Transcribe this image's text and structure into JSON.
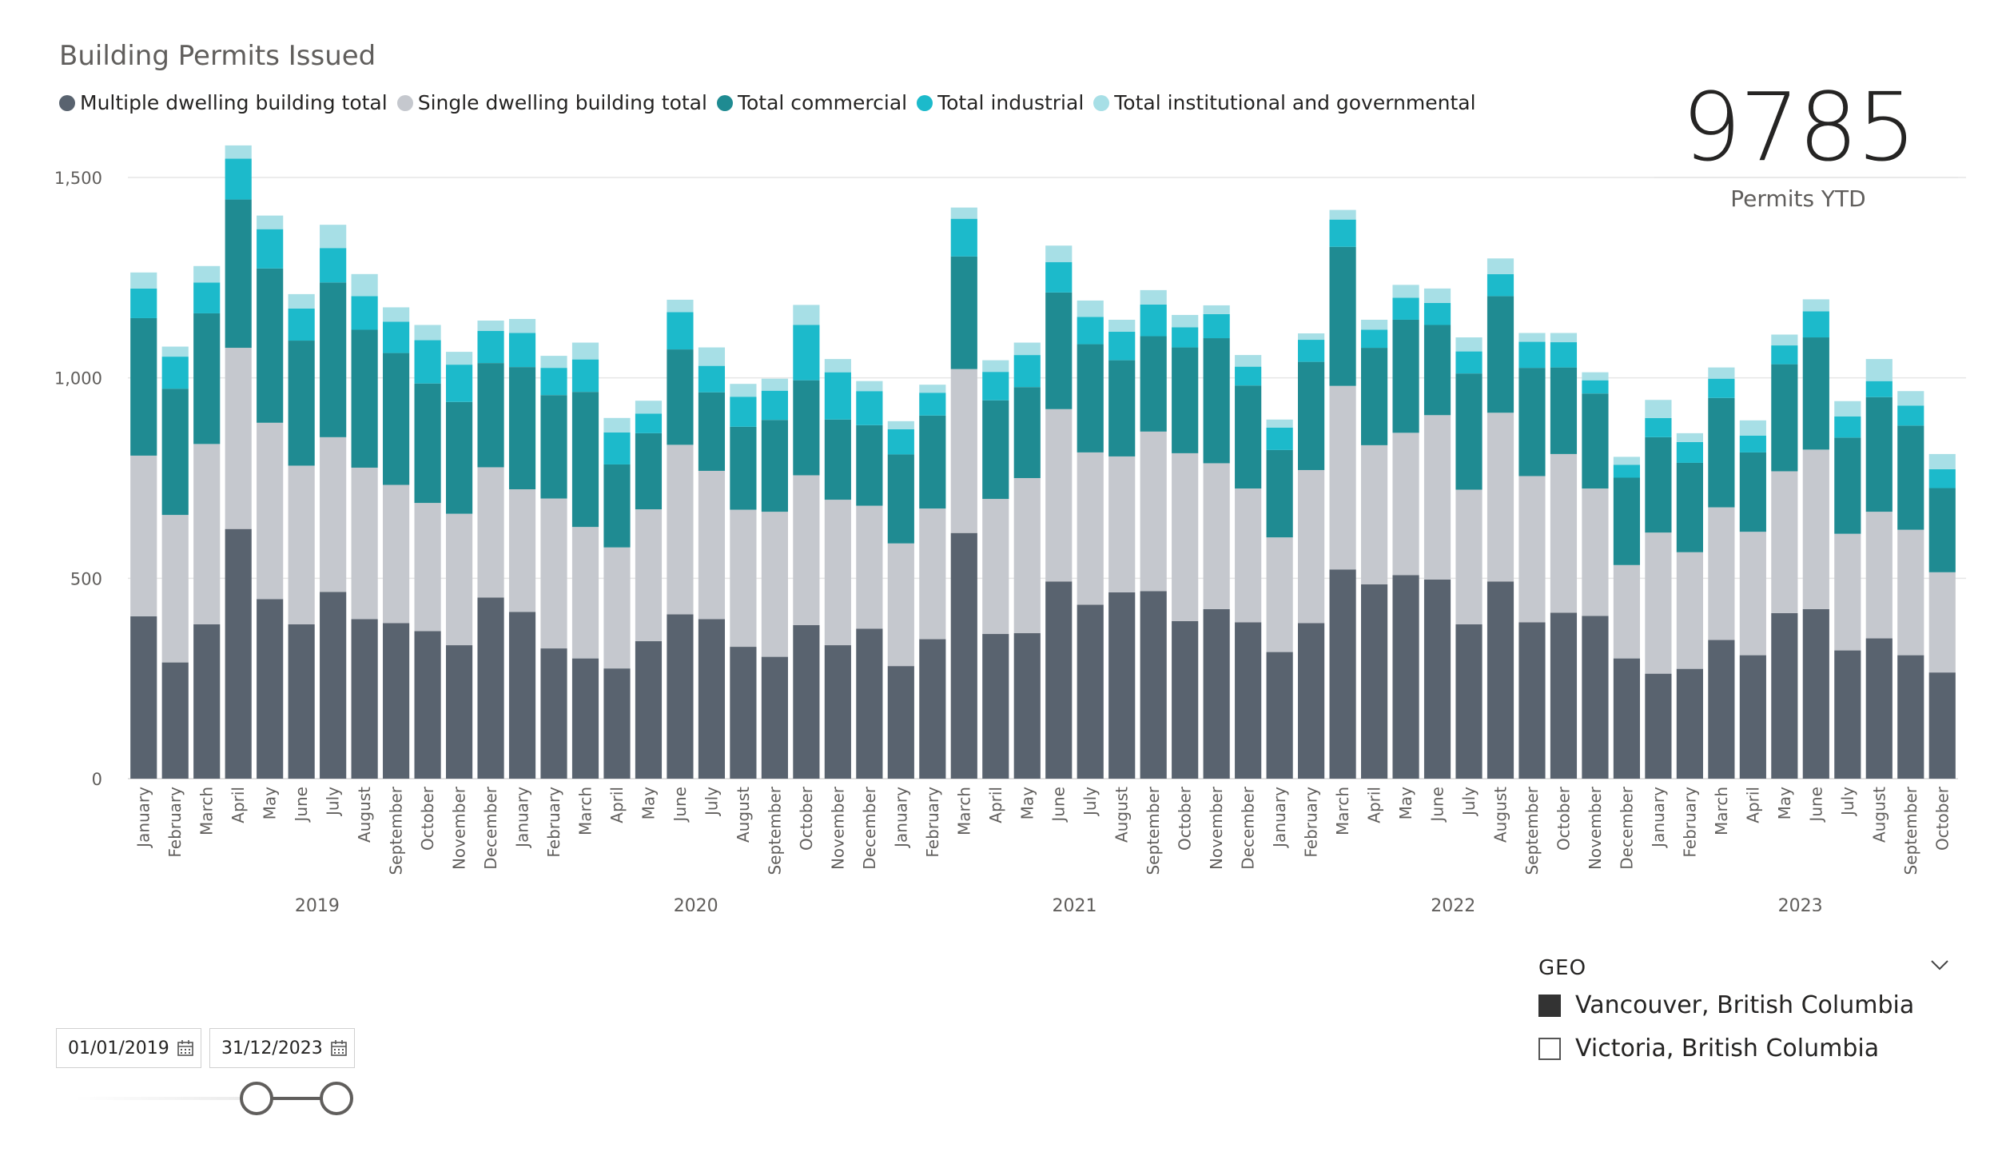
{
  "report": {
    "title": "Building Permits Issued"
  },
  "kpi": {
    "value": "9785",
    "label": "Permits YTD"
  },
  "filters": {
    "start_date": "01/01/2019",
    "end_date": "31/12/2023",
    "slider_range": [
      0.74,
      1.0
    ]
  },
  "geo": {
    "header": "GEO",
    "options": [
      {
        "label": "Vancouver, British Columbia",
        "checked": true
      },
      {
        "label": "Victoria, British Columbia",
        "checked": false
      }
    ]
  },
  "colors": {
    "multiple": "#59636f",
    "single": "#c5c8ce",
    "commercial": "#1f8b92",
    "industrial": "#1cbacb",
    "institutional": "#a7dfe6",
    "gridline": "#e6e6e6",
    "axis_text": "#605e5c"
  },
  "chart_data": {
    "type": "bar",
    "stacked": true,
    "title": "Building Permits Issued",
    "xlabel": "",
    "ylabel": "",
    "ylim": [
      0,
      1580
    ],
    "yticks": [
      0,
      500,
      1000,
      1500
    ],
    "ytick_labels": [
      "0",
      "500",
      "1,000",
      "1,500"
    ],
    "legend": "top-left",
    "grid": true,
    "categories": [
      "January",
      "February",
      "March",
      "April",
      "May",
      "June",
      "July",
      "August",
      "September",
      "October",
      "November",
      "December",
      "January",
      "February",
      "March",
      "April",
      "May",
      "June",
      "July",
      "August",
      "September",
      "October",
      "November",
      "December",
      "January",
      "February",
      "March",
      "April",
      "May",
      "June",
      "July",
      "August",
      "September",
      "October",
      "November",
      "December",
      "January",
      "February",
      "March",
      "April",
      "May",
      "June",
      "July",
      "August",
      "September",
      "October",
      "November",
      "December",
      "January",
      "February",
      "March",
      "April",
      "May",
      "June",
      "July",
      "August",
      "September",
      "October"
    ],
    "years": [
      {
        "label": "2019",
        "start": 0,
        "count": 12
      },
      {
        "label": "2020",
        "start": 12,
        "count": 12
      },
      {
        "label": "2021",
        "start": 24,
        "count": 12
      },
      {
        "label": "2022",
        "start": 36,
        "count": 12
      },
      {
        "label": "2023",
        "start": 48,
        "count": 10
      }
    ],
    "series": [
      {
        "name": "Multiple dwelling building total",
        "key": "multiple",
        "values": [
          405,
          290,
          385,
          623,
          448,
          385,
          466,
          398,
          388,
          368,
          333,
          452,
          416,
          325,
          300,
          275,
          343,
          410,
          398,
          329,
          304,
          383,
          333,
          374,
          281,
          348,
          613,
          361,
          363,
          492,
          434,
          465,
          468,
          393,
          423,
          390,
          316,
          388,
          522,
          485,
          508,
          497,
          385,
          492,
          390,
          414,
          406,
          300,
          262,
          274,
          346,
          308,
          413,
          423,
          320,
          350,
          308,
          265
        ]
      },
      {
        "name": "Single dwelling building total",
        "key": "single",
        "values": [
          401,
          368,
          450,
          452,
          440,
          396,
          386,
          378,
          345,
          320,
          328,
          325,
          306,
          374,
          328,
          302,
          329,
          423,
          370,
          342,
          362,
          374,
          363,
          307,
          306,
          326,
          409,
          337,
          387,
          430,
          380,
          339,
          398,
          419,
          364,
          334,
          286,
          382,
          458,
          347,
          355,
          410,
          336,
          421,
          365,
          396,
          318,
          233,
          352,
          291,
          331,
          308,
          354,
          398,
          291,
          316,
          313,
          250
        ]
      },
      {
        "name": "Total commercial",
        "key": "commercial",
        "values": [
          343,
          315,
          326,
          370,
          385,
          312,
          386,
          344,
          329,
          298,
          279,
          260,
          305,
          258,
          337,
          207,
          190,
          238,
          196,
          207,
          229,
          237,
          200,
          201,
          222,
          232,
          281,
          246,
          227,
          291,
          270,
          240,
          238,
          264,
          312,
          257,
          218,
          270,
          347,
          243,
          282,
          225,
          290,
          291,
          270,
          216,
          237,
          218,
          238,
          223,
          273,
          198,
          267,
          280,
          240,
          286,
          260,
          210
        ]
      },
      {
        "name": "Total industrial",
        "key": "industrial",
        "values": [
          74,
          80,
          77,
          102,
          98,
          80,
          86,
          84,
          78,
          108,
          93,
          80,
          85,
          68,
          81,
          80,
          49,
          93,
          66,
          75,
          73,
          138,
          118,
          85,
          63,
          57,
          94,
          71,
          80,
          76,
          68,
          71,
          79,
          50,
          60,
          47,
          56,
          55,
          68,
          45,
          55,
          55,
          55,
          55,
          65,
          63,
          33,
          32,
          48,
          52,
          48,
          42,
          47,
          65,
          53,
          40,
          50,
          47
        ]
      },
      {
        "name": "Total institutional and governmental",
        "key": "institutional",
        "values": [
          40,
          25,
          41,
          33,
          34,
          36,
          58,
          55,
          36,
          38,
          32,
          26,
          35,
          30,
          42,
          36,
          32,
          31,
          46,
          32,
          30,
          50,
          33,
          25,
          20,
          20,
          28,
          29,
          31,
          41,
          41,
          30,
          36,
          31,
          22,
          29,
          20,
          16,
          24,
          25,
          32,
          36,
          35,
          39,
          22,
          23,
          20,
          20,
          45,
          22,
          28,
          38,
          27,
          30,
          38,
          55,
          36,
          38
        ]
      }
    ]
  }
}
